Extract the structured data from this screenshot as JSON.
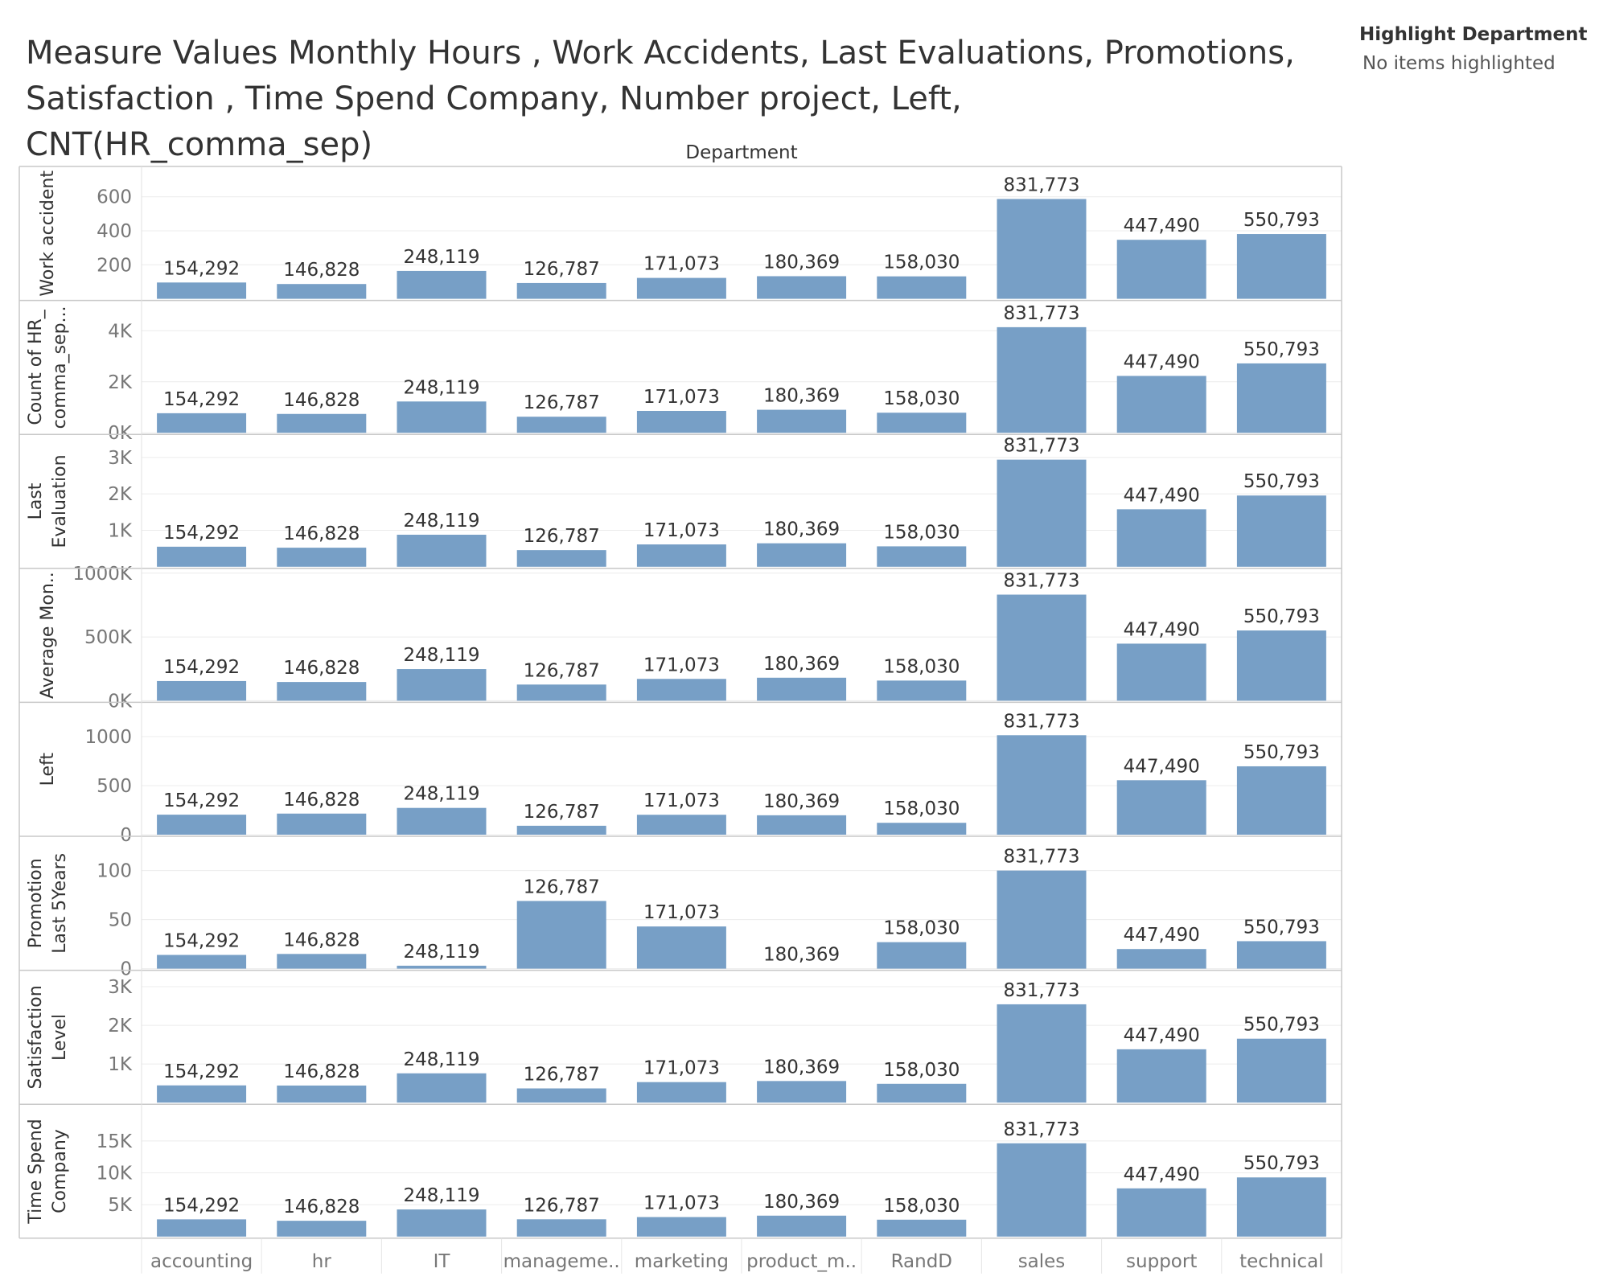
{
  "title": "Measure Values Monthly Hours , Work Accidents, Last Evaluations, Promotions, Satisfaction , Time Spend Company, Number project, Left, CNT(HR_comma_sep)",
  "legend": {
    "title": "Highlight Department",
    "status": "No items highlighted"
  },
  "chart_data": {
    "type": "bar",
    "column_header": "Department",
    "categories": [
      "accounting",
      "hr",
      "IT",
      "manageme..",
      "marketing",
      "product_m..",
      "RandD",
      "sales",
      "support",
      "technical"
    ],
    "bar_color": "#779fc6",
    "data_labels": [
      "154,292",
      "146,828",
      "248,119",
      "126,787",
      "171,073",
      "180,369",
      "158,030",
      "831,773",
      "447,490",
      "550,793"
    ],
    "panels": [
      {
        "name": "Work accident",
        "label_lines": [
          "Work accident"
        ],
        "ylim": [
          0,
          750
        ],
        "ticks": [
          {
            "v": 200,
            "t": "200"
          },
          {
            "v": 400,
            "t": "400"
          },
          {
            "v": 600,
            "t": "600"
          }
        ],
        "values": [
          96,
          87,
          164,
          93,
          123,
          133,
          132,
          587,
          347,
          381
        ]
      },
      {
        "name": "Count of HR_comma_sep",
        "label_lines": [
          "Count of HR_",
          "comma_sep..."
        ],
        "ylim": [
          0,
          5000
        ],
        "ticks": [
          {
            "v": 0,
            "t": "0K"
          },
          {
            "v": 2000,
            "t": "2K"
          },
          {
            "v": 4000,
            "t": "4K"
          }
        ],
        "values": [
          767,
          739,
          1227,
          630,
          858,
          902,
          787,
          4140,
          2229,
          2720
        ]
      },
      {
        "name": "Last Evaluation",
        "label_lines": [
          "Last",
          "Evaluation"
        ],
        "ylim": [
          0,
          3500
        ],
        "ticks": [
          {
            "v": 1000,
            "t": "1K"
          },
          {
            "v": 2000,
            "t": "2K"
          },
          {
            "v": 3000,
            "t": "3K"
          }
        ],
        "values": [
          550,
          523,
          879,
          456,
          613,
          644,
          560,
          2939,
          1577,
          1955
        ]
      },
      {
        "name": "Average Monthly Hours",
        "label_lines": [
          "Average Mon.."
        ],
        "ylim": [
          0,
          1000000
        ],
        "ticks": [
          {
            "v": 0,
            "t": "0K"
          },
          {
            "v": 500000,
            "t": "500K"
          },
          {
            "v": 1000000,
            "t": "1000K"
          }
        ],
        "values": [
          154292,
          146828,
          248119,
          126787,
          171073,
          180369,
          158030,
          831773,
          447490,
          550793
        ]
      },
      {
        "name": "Left",
        "label_lines": [
          "Left"
        ],
        "ylim": [
          0,
          1300
        ],
        "ticks": [
          {
            "v": 0,
            "t": "0"
          },
          {
            "v": 500,
            "t": "500"
          },
          {
            "v": 1000,
            "t": "1000"
          }
        ],
        "values": [
          204,
          215,
          273,
          91,
          203,
          198,
          121,
          1014,
          555,
          697
        ]
      },
      {
        "name": "Promotion Last 5Years",
        "label_lines": [
          "Promotion",
          "Last 5Years"
        ],
        "ylim": [
          0,
          130
        ],
        "ticks": [
          {
            "v": 0,
            "t": "0"
          },
          {
            "v": 50,
            "t": "50"
          },
          {
            "v": 100,
            "t": "100"
          }
        ],
        "values": [
          14,
          15,
          3,
          69,
          43,
          0,
          27,
          100,
          20,
          28
        ]
      },
      {
        "name": "Satisfaction Level",
        "label_lines": [
          "Satisfaction",
          "Level"
        ],
        "ylim": [
          0,
          3300
        ],
        "ticks": [
          {
            "v": 1000,
            "t": "1K"
          },
          {
            "v": 2000,
            "t": "2K"
          },
          {
            "v": 3000,
            "t": "3K"
          }
        ],
        "values": [
          446,
          442,
          758,
          368,
          531,
          559,
          487,
          2544,
          1380,
          1654
        ]
      },
      {
        "name": "Time Spend Company",
        "label_lines": [
          "Time Spend",
          "Company"
        ],
        "ylim": [
          0,
          20000
        ],
        "ticks": [
          {
            "v": 5000,
            "t": "5K"
          },
          {
            "v": 10000,
            "t": "10K"
          },
          {
            "v": 15000,
            "t": "15K"
          }
        ],
        "values": [
          2702,
          2480,
          4256,
          2711,
          3063,
          3283,
          2650,
          14631,
          7563,
          9279
        ]
      }
    ]
  }
}
